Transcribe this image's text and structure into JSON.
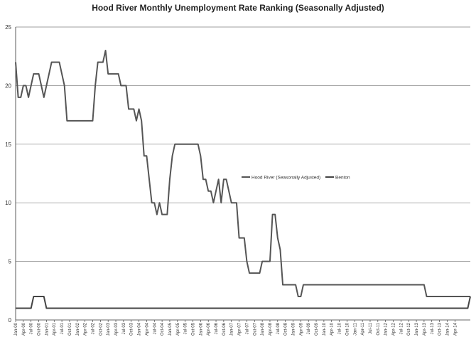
{
  "chart_data": {
    "type": "line",
    "title": "Hood River Monthly Unemployment Rate Ranking (Seasonally Adjusted)",
    "xlabel": "",
    "ylabel": "",
    "ylim": [
      0,
      25
    ],
    "yticks": [
      0,
      5,
      10,
      15,
      20,
      25
    ],
    "grid": true,
    "legend": "center-right",
    "x_tick_labels": [
      "Jan-00",
      "Apr-00",
      "Jul-00",
      "Oct-00",
      "Jan-01",
      "Apr-01",
      "Jul-01",
      "Oct-01",
      "Jan-02",
      "Apr-02",
      "Jul-02",
      "Oct-02",
      "Jan-03",
      "Apr-03",
      "Jul-03",
      "Oct-03",
      "Jan-04",
      "Apr-04",
      "Jul-04",
      "Oct-04",
      "Jan-05",
      "Apr-05",
      "Jul-05",
      "Oct-05",
      "Jan-06",
      "Apr-06",
      "Jul-06",
      "Oct-06",
      "Jan-07",
      "Apr-07",
      "Jul-07",
      "Oct-07",
      "Jan-08",
      "Apr-08",
      "Jul-08",
      "Oct-08",
      "Jan-09",
      "Apr-09",
      "Jul-09",
      "Oct-09",
      "Jan-10",
      "Apr-10",
      "Jul-10",
      "Oct-10",
      "Jan-11",
      "Apr-11",
      "Jul-11",
      "Oct-11",
      "Jan-12",
      "Apr-12",
      "Jul-12",
      "Oct-12",
      "Jan-13",
      "Apr-13",
      "Jul-13",
      "Oct-13",
      "Jan-14",
      "Apr-14"
    ],
    "series": [
      {
        "name": "Hood River (Seasonally Adjusted)",
        "color": "#555555",
        "values": [
          22,
          19,
          19,
          20,
          20,
          19,
          20,
          21,
          21,
          21,
          20,
          19,
          20,
          21,
          22,
          22,
          22,
          22,
          21,
          20,
          17,
          17,
          17,
          17,
          17,
          17,
          17,
          17,
          17,
          17,
          17,
          20,
          22,
          22,
          22,
          23,
          21,
          21,
          21,
          21,
          21,
          20,
          20,
          20,
          18,
          18,
          18,
          17,
          18,
          17,
          14,
          14,
          12,
          10,
          10,
          9,
          10,
          9,
          9,
          9,
          12,
          14,
          15,
          15,
          15,
          15,
          15,
          15,
          15,
          15,
          15,
          15,
          14,
          12,
          12,
          11,
          11,
          10,
          11,
          12,
          10,
          12,
          12,
          11,
          10,
          10,
          10,
          7,
          7,
          7,
          5,
          4,
          4,
          4,
          4,
          4,
          5,
          5,
          5,
          5,
          9,
          9,
          7,
          6,
          3,
          3,
          3,
          3,
          3,
          3,
          2,
          2,
          3,
          3,
          3,
          3,
          3,
          3,
          3,
          3,
          3,
          3,
          3,
          3,
          3,
          3,
          3,
          3,
          3,
          3,
          3,
          3,
          3,
          3,
          3,
          3,
          3,
          3,
          3,
          3,
          3,
          3,
          3,
          3,
          3,
          3,
          3,
          3,
          3,
          3,
          3,
          3,
          3,
          3,
          3,
          3,
          3,
          3,
          3,
          3,
          2,
          2,
          2,
          2,
          2,
          2,
          2,
          2,
          2,
          2,
          2,
          2,
          2,
          2,
          2,
          2,
          2,
          2
        ]
      },
      {
        "name": "Benton",
        "color": "#444444",
        "values": [
          1,
          1,
          1,
          1,
          1,
          1,
          1,
          2,
          2,
          2,
          2,
          2,
          1,
          1,
          1,
          1,
          1,
          1,
          1,
          1,
          1,
          1,
          1,
          1,
          1,
          1,
          1,
          1,
          1,
          1,
          1,
          1,
          1,
          1,
          1,
          1,
          1,
          1,
          1,
          1,
          1,
          1,
          1,
          1,
          1,
          1,
          1,
          1,
          1,
          1,
          1,
          1,
          1,
          1,
          1,
          1,
          1,
          1,
          1,
          1,
          1,
          1,
          1,
          1,
          1,
          1,
          1,
          1,
          1,
          1,
          1,
          1,
          1,
          1,
          1,
          1,
          1,
          1,
          1,
          1,
          1,
          1,
          1,
          1,
          1,
          1,
          1,
          1,
          1,
          1,
          1,
          1,
          1,
          1,
          1,
          1,
          1,
          1,
          1,
          1,
          1,
          1,
          1,
          1,
          1,
          1,
          1,
          1,
          1,
          1,
          1,
          1,
          1,
          1,
          1,
          1,
          1,
          1,
          1,
          1,
          1,
          1,
          1,
          1,
          1,
          1,
          1,
          1,
          1,
          1,
          1,
          1,
          1,
          1,
          1,
          1,
          1,
          1,
          1,
          1,
          1,
          1,
          1,
          1,
          1,
          1,
          1,
          1,
          1,
          1,
          1,
          1,
          1,
          1,
          1,
          1,
          1,
          1,
          1,
          1,
          1,
          1,
          1,
          1,
          1,
          1,
          1,
          1,
          1,
          1,
          1,
          1,
          1,
          1,
          1,
          1,
          1,
          2
        ]
      }
    ]
  }
}
